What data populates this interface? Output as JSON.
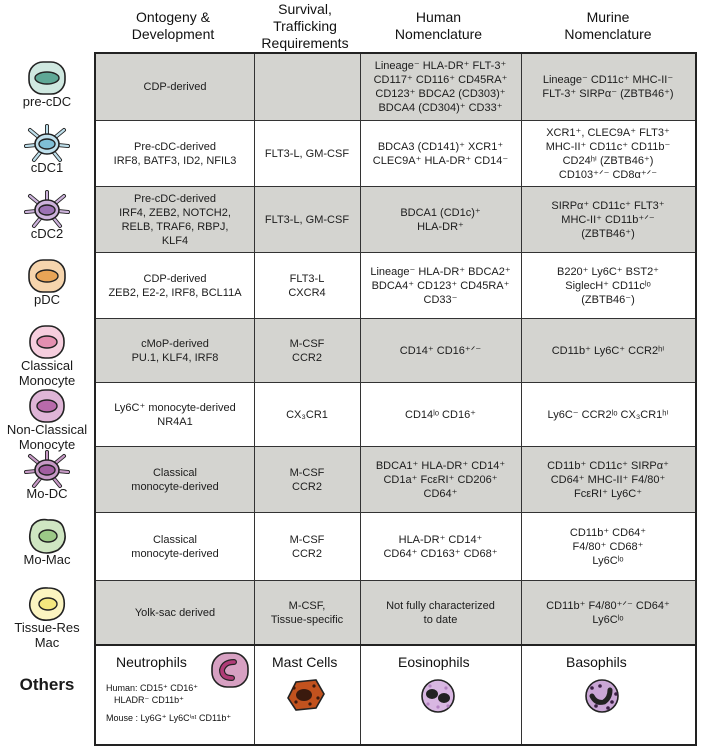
{
  "headers": {
    "col1": [
      "Ontogeny &",
      "Development"
    ],
    "col2": [
      "Survival,",
      "Trafficking",
      "Requirements"
    ],
    "col3": [
      "Human",
      "Nomenclature"
    ],
    "col4": [
      "Murine",
      "Nomenclature"
    ]
  },
  "rows": [
    {
      "label": [
        "pre-cDC"
      ],
      "icon": "pre-cdc-cell-icon",
      "ontogeny": [
        "CDP-derived"
      ],
      "survival": [],
      "human": [
        "Lineage⁻ HLA-DR⁺ FLT-3⁺",
        "CD117⁺ CD116⁺ CD45RA⁺",
        "CD123⁺ BDCA2 (CD303)⁺",
        "BDCA4 (CD304)⁺ CD33⁺"
      ],
      "murine": [
        "Lineage⁻ CD11c⁺ MHC-II⁻",
        "FLT-3⁺ SIRPα⁻ (ZBTB46⁺)"
      ]
    },
    {
      "label": [
        "cDC1"
      ],
      "icon": "cdc1-dendritic-cell-icon",
      "ontogeny": [
        "Pre-cDC-derived",
        "IRF8, BATF3, ID2, NFIL3"
      ],
      "survival": [
        "FLT3-L, GM-CSF"
      ],
      "human": [
        "BDCA3 (CD141)⁺ XCR1⁺",
        "CLEC9A⁺ HLA-DR⁺ CD14⁻"
      ],
      "murine": [
        "XCR1⁺, CLEC9A⁺ FLT3⁺",
        "MHC-II⁺ CD11c⁺ CD11b⁻",
        "CD24ʰⁱ (ZBTB46⁺)",
        "CD103⁺ᐟ⁻ CD8α⁺ᐟ⁻"
      ]
    },
    {
      "label": [
        "cDC2"
      ],
      "icon": "cdc2-dendritic-cell-icon",
      "ontogeny": [
        "Pre-cDC-derived",
        "IRF4, ZEB2, NOTCH2,",
        "RELB, TRAF6, RBPJ,",
        "KLF4"
      ],
      "survival": [
        "FLT3-L, GM-CSF"
      ],
      "human": [
        "BDCA1 (CD1c)⁺",
        "HLA-DR⁺"
      ],
      "murine": [
        "SIRPα⁺ CD11c⁺ FLT3⁺",
        "MHC-II⁺ CD11b⁺ᐟ⁻",
        "(ZBTB46⁺)"
      ]
    },
    {
      "label": [
        "pDC"
      ],
      "icon": "pdc-cell-icon",
      "ontogeny": [
        "CDP-derived",
        "ZEB2, E2-2, IRF8, BCL11A"
      ],
      "survival": [
        "FLT3-L",
        "CXCR4"
      ],
      "human": [
        "Lineage⁻ HLA-DR⁺ BDCA2⁺",
        "BDCA4⁺ CD123⁺ CD45RA⁺",
        "CD33⁻"
      ],
      "murine": [
        "B220⁺ Ly6C⁺ BST2⁺",
        "SiglecH⁺ CD11cˡᵒ",
        "(ZBTB46⁻)"
      ]
    },
    {
      "label": [
        "Classical",
        "Monocyte"
      ],
      "icon": "classical-monocyte-icon",
      "ontogeny": [
        "cMoP-derived",
        "PU.1, KLF4, IRF8"
      ],
      "survival": [
        "M-CSF",
        "CCR2"
      ],
      "human": [
        "CD14⁺ CD16⁺ᐟ⁻"
      ],
      "murine": [
        "CD11b⁺ Ly6C⁺ CCR2ʰⁱ"
      ]
    },
    {
      "label": [
        "Non-Classical",
        "Monocyte"
      ],
      "icon": "non-classical-monocyte-icon",
      "ontogeny": [
        "Ly6C⁺ monocyte-derived",
        "NR4A1"
      ],
      "survival": [
        "CX₃CR1"
      ],
      "human": [
        "CD14ˡᵒ CD16⁺"
      ],
      "murine": [
        "Ly6C⁻ CCR2ˡᵒ CX₃CR1ʰⁱ"
      ]
    },
    {
      "label": [
        "Mo-DC"
      ],
      "icon": "mo-dc-cell-icon",
      "ontogeny": [
        "Classical",
        "monocyte-derived"
      ],
      "survival": [
        "M-CSF",
        "CCR2"
      ],
      "human": [
        "BDCA1⁺ HLA-DR⁺ CD14⁺",
        "CD1a⁺ FcεRI⁺ CD206⁺",
        "CD64⁺"
      ],
      "murine": [
        "CD11b⁺ CD11c⁺ SIRPα⁺",
        "CD64⁺ MHC-II⁺ F4/80⁺",
        "FcεRI⁺ Ly6C⁺"
      ]
    },
    {
      "label": [
        "Mo-Mac"
      ],
      "icon": "mo-mac-cell-icon",
      "ontogeny": [
        "Classical",
        "monocyte-derived"
      ],
      "survival": [
        "M-CSF",
        "CCR2"
      ],
      "human": [
        "HLA-DR⁺ CD14⁺",
        "CD64⁺ CD163⁺ CD68⁺"
      ],
      "murine": [
        "CD11b⁺ CD64⁺",
        "F4/80⁺ CD68⁺",
        "Ly6Cˡᵒ"
      ]
    },
    {
      "label": [
        "Tissue-Res",
        "Mac"
      ],
      "icon": "tissue-resident-macrophage-icon",
      "ontogeny": [
        "Yolk-sac derived"
      ],
      "survival": [
        "M-CSF,",
        "Tissue-specific"
      ],
      "human": [
        "Not fully characterized",
        "to date"
      ],
      "murine": [
        "CD11b⁺ F4/80⁺ᐟ⁻ CD64⁺",
        "Ly6Cˡᵒ"
      ]
    }
  ],
  "others": {
    "label": "Others",
    "neutrophils": {
      "title": "Neutrophils",
      "human": "Human: CD15⁺ CD16⁺",
      "human2": "HLADR⁻ CD11b⁺",
      "mouse": "Mouse : Ly6G⁺ Ly6Cⁱⁿᵗ CD11b⁺",
      "icon": "neutrophil-icon"
    },
    "mast": {
      "title": "Mast Cells",
      "icon": "mast-cell-icon"
    },
    "eos": {
      "title": "Eosinophils",
      "icon": "eosinophil-icon"
    },
    "baso": {
      "title": "Basophils",
      "icon": "basophil-icon"
    }
  },
  "colors": {
    "grey_row": "#d4d4d0",
    "precdc": "#5fa896",
    "cdc1": "#7fbfd6",
    "cdc2": "#9b72b4",
    "pdc": "#e8a456",
    "classical_mono": "#e48fb0",
    "nonclassical_mono": "#b86aab",
    "modc": "#a15ea0",
    "momac": "#9cc987",
    "tissue_mac": "#f4e77e",
    "neutrophil": "#b03b77",
    "mast": "#c2521e",
    "eos": "#b483c2",
    "baso": "#a46bb3"
  }
}
